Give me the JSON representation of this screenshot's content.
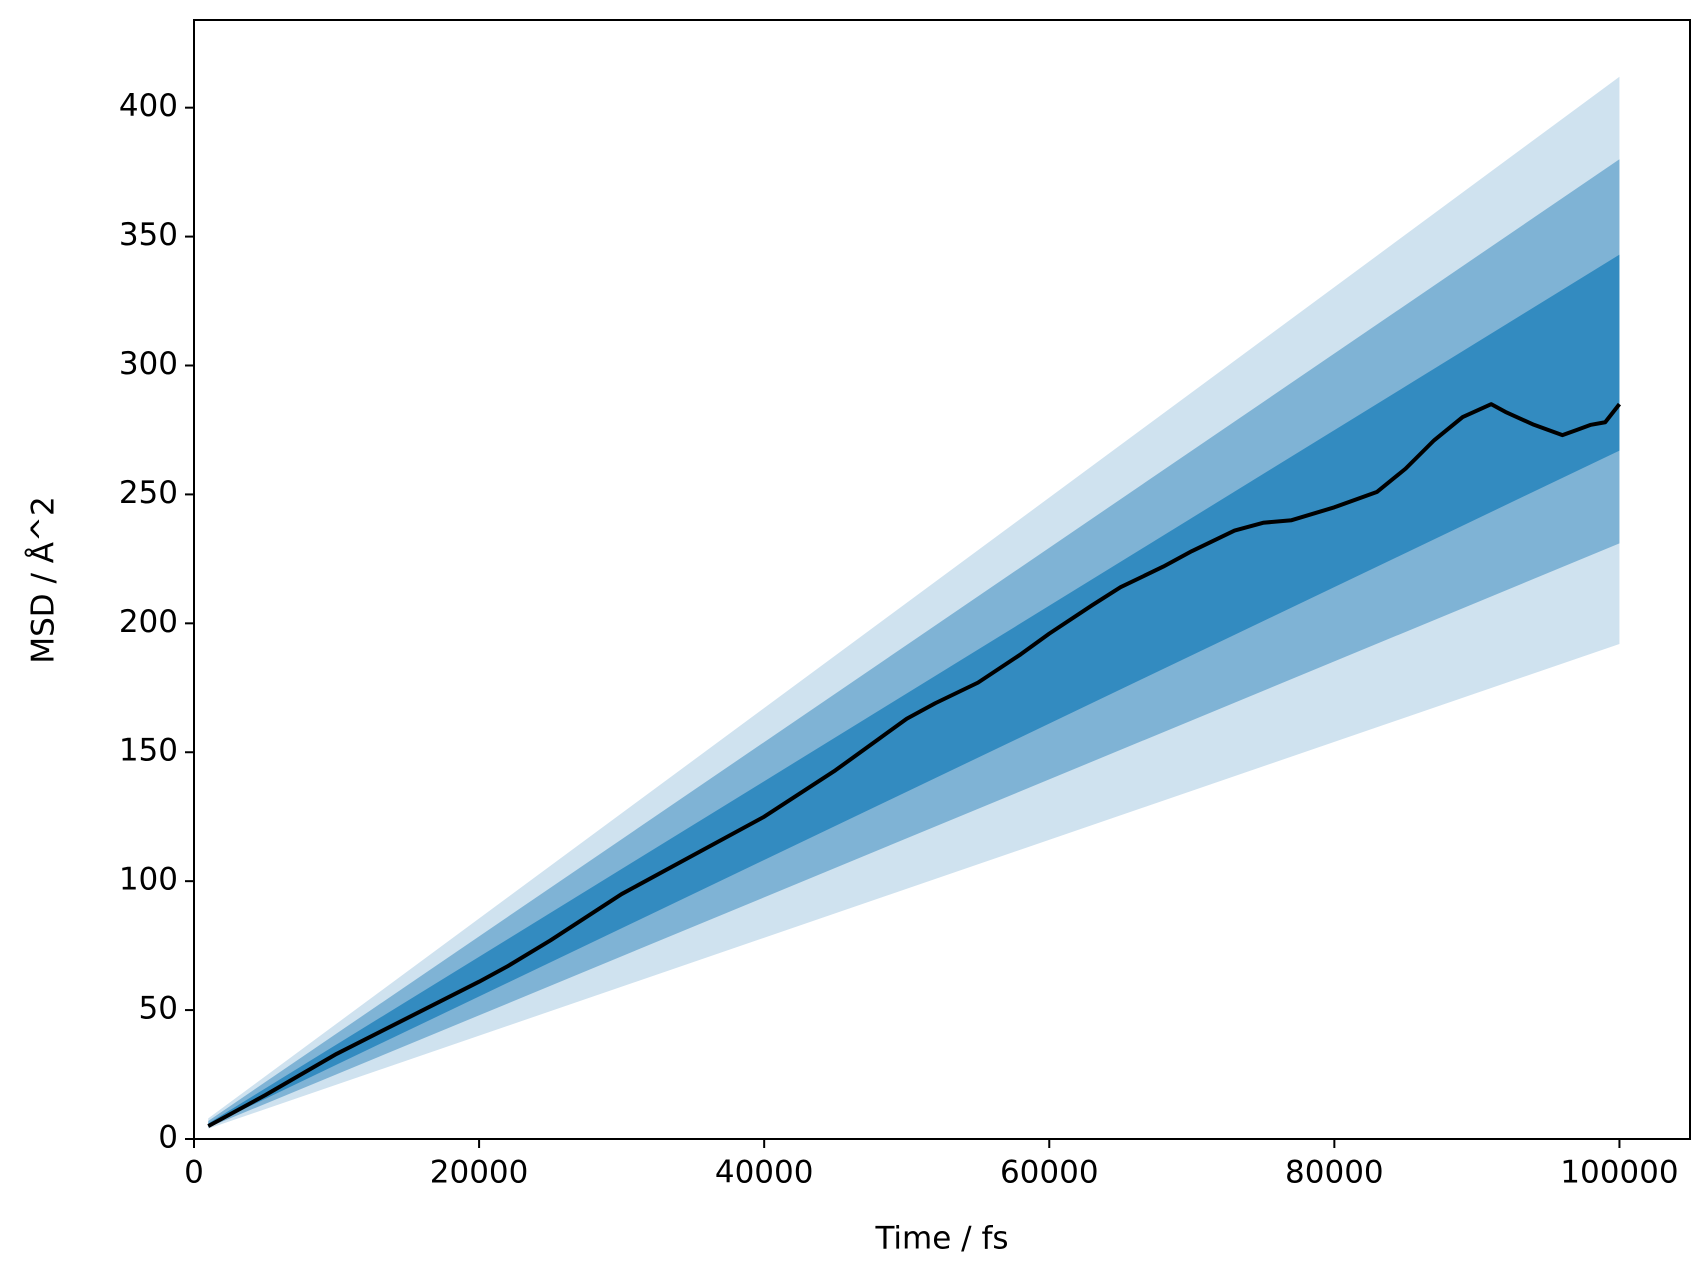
{
  "chart_data": {
    "type": "line",
    "xlabel": "Time / fs",
    "ylabel": "MSD / Å^2",
    "x": [
      1000,
      5000,
      10000,
      15000,
      20000,
      22000,
      25000,
      30000,
      35000,
      40000,
      45000,
      48000,
      50000,
      52000,
      55000,
      58000,
      60000,
      63000,
      65000,
      68000,
      70000,
      73000,
      75000,
      77000,
      80000,
      83000,
      85000,
      87000,
      89000,
      91000,
      92000,
      94000,
      96000,
      97000,
      98000,
      99000,
      100000
    ],
    "values": [
      5,
      17,
      33,
      47,
      61,
      67,
      77,
      95,
      110,
      125,
      143,
      155,
      163,
      169,
      177,
      188,
      196,
      207,
      214,
      222,
      228,
      236,
      239,
      240,
      245,
      251,
      260,
      271,
      280,
      285,
      282,
      277,
      273,
      275,
      277,
      278,
      285
    ],
    "color": "#000000",
    "band_x": [
      1000,
      100000
    ],
    "bands": [
      {
        "lower": [
          4,
          192
        ],
        "upper": [
          8,
          412
        ],
        "color": "#cfe2ef"
      },
      {
        "lower": [
          4.5,
          231
        ],
        "upper": [
          7,
          380
        ],
        "color": "#7fb3d5"
      },
      {
        "lower": [
          5,
          267
        ],
        "upper": [
          6,
          343
        ],
        "color": "#338bc0"
      }
    ],
    "xlim": [
      0,
      104950
    ],
    "ylim": [
      0,
      434
    ],
    "xticks": [
      0,
      20000,
      40000,
      60000,
      80000,
      100000
    ],
    "yticks": [
      0,
      50,
      100,
      150,
      200,
      250,
      300,
      350,
      400
    ]
  }
}
